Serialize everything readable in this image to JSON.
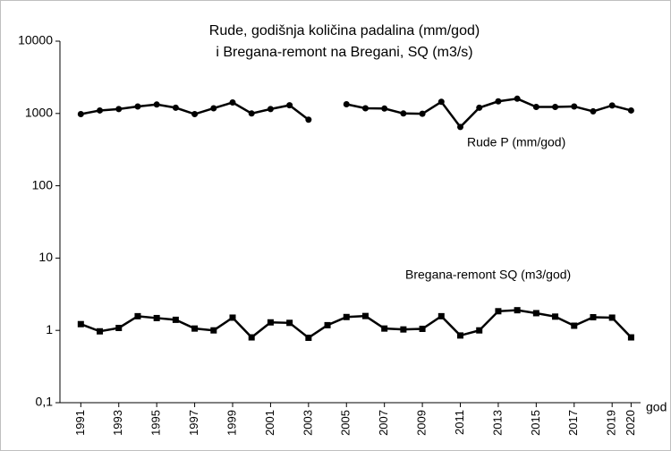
{
  "chart_data": {
    "type": "line",
    "title": [
      "Rude, godišnja količina padalina (mm/god)",
      "i Bregana-remont na Bregani, SQ (m3/s)"
    ],
    "x_label": "god",
    "x": [
      1991,
      1992,
      1993,
      1994,
      1995,
      1996,
      1997,
      1998,
      1999,
      2000,
      2001,
      2002,
      2003,
      2004,
      2005,
      2006,
      2007,
      2008,
      2009,
      2010,
      2011,
      2012,
      2013,
      2014,
      2015,
      2016,
      2017,
      2018,
      2019,
      2020
    ],
    "xlim": [
      1989.9,
      2020.5
    ],
    "xticks": [
      1991,
      1993,
      1995,
      1997,
      1999,
      2001,
      2003,
      2005,
      2007,
      2009,
      2011,
      2013,
      2015,
      2017,
      2019,
      2020
    ],
    "ylim": [
      0.1,
      10000
    ],
    "log_y": true,
    "yticks": [
      {
        "value": 0.1,
        "label": "0,1"
      },
      1,
      10,
      100,
      1000,
      10000
    ],
    "grid": false,
    "series": [
      {
        "name": "Rude P (mm/god)",
        "color": "#000000",
        "marker": "circle",
        "values": [
          980,
          1100,
          1150,
          1250,
          1330,
          1200,
          980,
          1180,
          1420,
          1000,
          1150,
          1300,
          820,
          null,
          1340,
          1180,
          1170,
          1000,
          990,
          1450,
          650,
          1200,
          1470,
          1600,
          1230,
          1230,
          1250,
          1070,
          1290,
          1100
        ]
      },
      {
        "name": "Bregana-remont SQ (m3/god)",
        "color": "#000000",
        "marker": "square",
        "values": [
          1.22,
          0.97,
          1.08,
          1.57,
          1.48,
          1.4,
          1.06,
          1.0,
          1.5,
          0.8,
          1.29,
          1.27,
          0.79,
          1.18,
          1.53,
          1.58,
          1.06,
          1.03,
          1.05,
          1.57,
          0.85,
          1.0,
          1.84,
          1.9,
          1.73,
          1.55,
          1.16,
          1.52,
          1.5,
          0.8
        ]
      }
    ]
  }
}
